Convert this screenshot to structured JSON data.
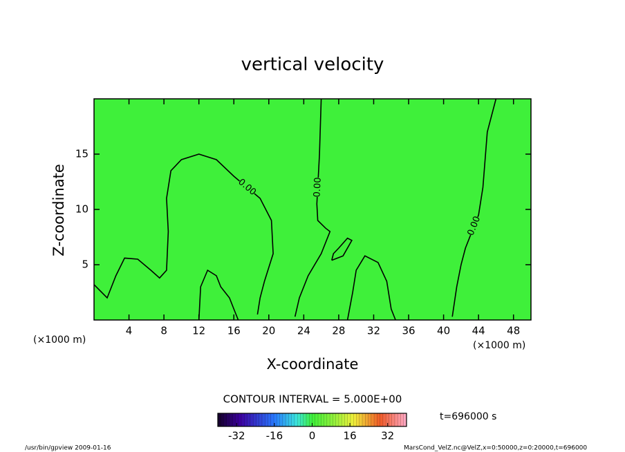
{
  "chart_data": {
    "type": "contour",
    "title": "vertical velocity",
    "x_label": "X-coordinate",
    "y_label": "Z-coordinate",
    "x_unit_label": "(×1000 m)",
    "x_unit_label_right": "(×1000 m)",
    "xlim": [
      0,
      50
    ],
    "ylim": [
      0,
      20
    ],
    "xticks": [
      4,
      8,
      12,
      16,
      20,
      24,
      28,
      32,
      36,
      40,
      44,
      48
    ],
    "yticks": [
      5,
      10,
      15
    ],
    "fill_color": "#3ff03a",
    "contours": [
      {
        "level": 0,
        "label": "0.00",
        "x": [
          0,
          1.5,
          2.5,
          3.5,
          5,
          6.5,
          7.5,
          8.3,
          8.5,
          8.3,
          8.8,
          10,
          12,
          14,
          16,
          17.5,
          19,
          20.3,
          20.5,
          19.5,
          19,
          18.7
        ],
        "z": [
          3.2,
          2,
          4,
          5.6,
          5.5,
          4.5,
          3.8,
          4.5,
          8,
          11,
          13.5,
          14.5,
          15,
          14.5,
          13,
          12,
          11,
          9,
          6,
          3.5,
          2,
          0.5
        ]
      },
      {
        "level": 0,
        "label": "0.00",
        "x": [
          26,
          25.8,
          25.6,
          25.5,
          25.6,
          26.5,
          27,
          26,
          24.5,
          23.5,
          23
        ],
        "z": [
          20,
          15,
          12,
          10.5,
          9,
          8.3,
          8,
          6,
          4,
          2,
          0.3
        ]
      },
      {
        "level": 0,
        "label": "0.00",
        "x": [
          46,
          45,
          44.5,
          44,
          43.5,
          42.5,
          42,
          41.5,
          41
        ],
        "z": [
          20,
          17,
          12,
          9.5,
          8.5,
          6.5,
          5,
          3,
          0.3
        ]
      },
      {
        "level": 0,
        "x": [
          29,
          29.6,
          30,
          31,
          32.5,
          33.5,
          34,
          34.5
        ],
        "z": [
          0,
          2.5,
          4.5,
          5.8,
          5.2,
          3.5,
          1,
          0
        ]
      },
      {
        "level": 0,
        "x": [
          27.2,
          27.4,
          28,
          29,
          29.5,
          28.5,
          27.2
        ],
        "z": [
          5.4,
          6,
          6.5,
          7.4,
          7.2,
          5.8,
          5.4
        ]
      },
      {
        "level": 0,
        "x": [
          12,
          12.2,
          13,
          14,
          14.5,
          15.5,
          16,
          16.5
        ],
        "z": [
          0,
          3,
          4.5,
          4,
          3,
          2,
          1,
          0
        ]
      }
    ],
    "contour_interval_label": "CONTOUR INTERVAL = 5.000E+00",
    "colorbar_lim": [
      -40,
      40
    ],
    "colorbar_ticks": [
      -32,
      -16,
      0,
      16,
      32
    ],
    "time_label": "t=696000 s",
    "footer_left": "/usr/bin/gpview   2009-01-16",
    "footer_right": "MarsCond_VelZ.nc@VelZ,x=0:50000,z=0:20000,t=696000"
  }
}
